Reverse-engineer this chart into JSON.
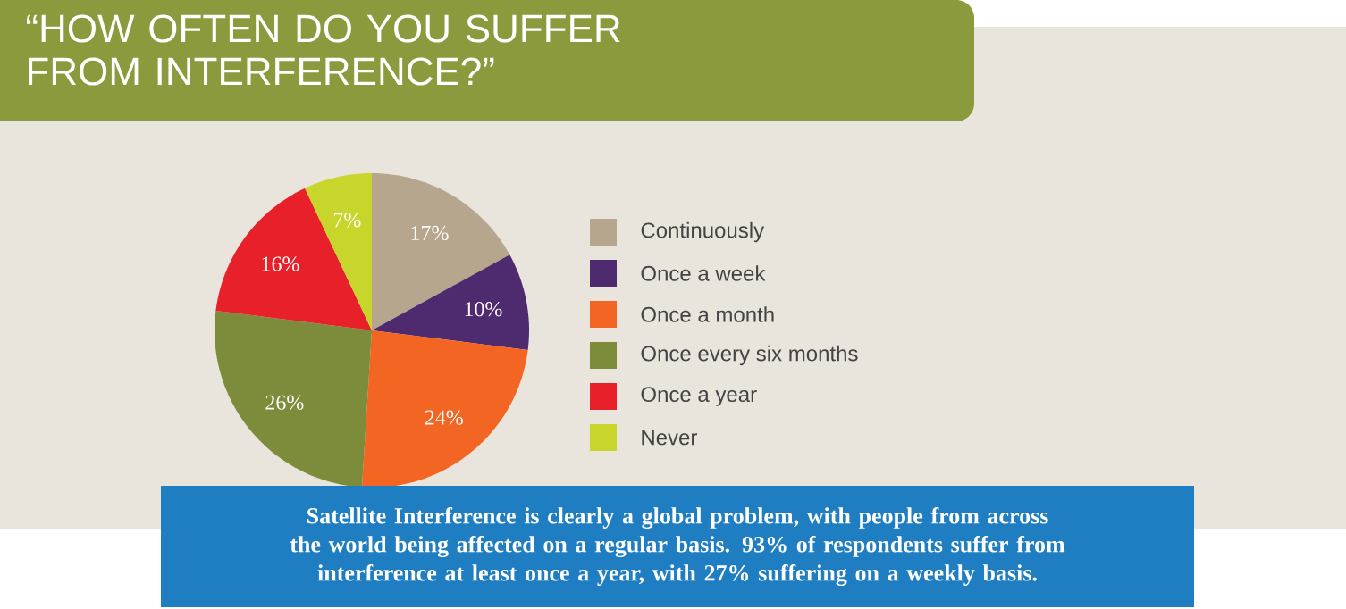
{
  "chart_data": {
    "type": "pie",
    "title": "“HOW OFTEN DO YOU SUFFER FROM INTERFERENCE?”",
    "categories": [
      "Continuously",
      "Once a week",
      "Once a month",
      "Once every six months",
      "Once a year",
      "Never"
    ],
    "values": [
      17,
      10,
      24,
      26,
      16,
      7
    ],
    "colors": [
      "#b5a68d",
      "#4e2a6e",
      "#f26522",
      "#7d8c3a",
      "#e8202a",
      "#c8d62b"
    ],
    "value_labels": [
      "17%",
      "10%",
      "24%",
      "26%",
      "16%",
      "7%"
    ],
    "legend": "right",
    "annotations": [
      "Satellite Interference is clearly a global problem, with people from across the world being affected on a regular basis. 93% of respondents suffer from interference at least once a year, with 27% suffering on a weekly basis."
    ]
  }
}
